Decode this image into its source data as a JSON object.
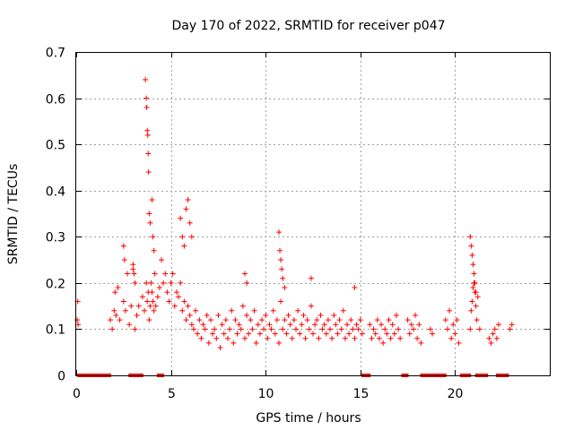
{
  "chart_data": {
    "type": "scatter",
    "title": "Day 170 of 2022, SRMTID for receiver p047",
    "xlabel": "GPS time / hours",
    "ylabel": "SRMTID / TECUs",
    "xlim": [
      0,
      25
    ],
    "ylim": [
      0,
      0.7
    ],
    "x_ticks": [
      0,
      5,
      10,
      15,
      20
    ],
    "x_tick_labels": [
      "0",
      "5",
      "10",
      "15",
      "20"
    ],
    "y_ticks": [
      0,
      0.1,
      0.2,
      0.3,
      0.4,
      0.5,
      0.6,
      0.7
    ],
    "y_tick_labels": [
      "0",
      "0.1",
      "0.2",
      "0.3",
      "0.4",
      "0.5",
      "0.6",
      "0.7"
    ],
    "grid": true,
    "marker": "+",
    "color": "#ff0000",
    "series": [
      {
        "name": "SRMTID",
        "x": [
          0.05,
          0.08,
          0.1,
          1.8,
          1.9,
          2.0,
          2.05,
          2.1,
          2.2,
          2.3,
          2.5,
          2.6,
          2.7,
          2.8,
          2.9,
          3.0,
          3.1,
          3.2,
          3.3,
          3.5,
          3.6,
          3.7,
          3.75,
          3.8,
          3.85,
          3.9,
          3.95,
          4.0,
          4.05,
          4.1,
          4.15,
          4.2,
          4.3,
          4.4,
          4.5,
          4.6,
          4.7,
          4.8,
          4.9,
          5.0,
          5.1,
          5.2,
          5.3,
          5.4,
          5.5,
          5.6,
          5.7,
          5.8,
          5.9,
          6.0,
          6.1,
          6.2,
          6.3,
          6.4,
          6.5,
          6.6,
          6.7,
          6.8,
          6.9,
          7.0,
          7.1,
          7.2,
          7.3,
          7.4,
          7.5,
          7.6,
          7.7,
          7.8,
          7.9,
          8.0,
          8.1,
          8.2,
          8.3,
          8.4,
          8.5,
          8.6,
          8.7,
          8.8,
          8.9,
          9.0,
          9.1,
          9.2,
          9.3,
          9.4,
          9.5,
          9.6,
          9.7,
          9.8,
          9.9,
          10.0,
          10.1,
          10.2,
          10.3,
          10.4,
          10.5,
          10.6,
          10.7,
          10.8,
          10.9,
          11.0,
          11.1,
          11.2,
          11.3,
          11.4,
          11.5,
          11.6,
          11.7,
          11.8,
          11.9,
          12.0,
          12.1,
          12.2,
          12.3,
          12.4,
          12.5,
          12.6,
          12.7,
          12.8,
          12.9,
          13.0,
          13.1,
          13.2,
          13.3,
          13.4,
          13.5,
          13.6,
          13.7,
          13.8,
          13.9,
          14.0,
          14.1,
          14.2,
          14.3,
          14.4,
          14.5,
          14.6,
          14.7,
          14.8,
          14.9,
          15.0,
          15.1,
          15.5,
          15.6,
          15.7,
          15.8,
          15.9,
          16.0,
          16.1,
          16.2,
          16.3,
          16.4,
          16.5,
          16.6,
          16.7,
          16.8,
          16.9,
          17.0,
          17.1,
          17.5,
          17.6,
          17.7,
          17.8,
          17.9,
          18.0,
          18.1,
          18.2,
          18.7,
          18.8,
          19.5,
          19.6,
          19.7,
          19.8,
          19.9,
          20.0,
          20.1,
          20.2,
          20.8,
          20.85,
          20.9,
          20.95,
          21.0,
          21.05,
          21.1,
          21.15,
          21.2,
          21.3,
          21.8,
          21.9,
          22.0,
          22.1,
          22.2,
          22.3,
          22.9,
          23.0,
          3.65,
          3.7,
          3.72,
          3.75,
          3.78,
          3.8,
          3.82,
          3.85,
          3.9,
          4.0,
          4.05,
          4.1,
          5.5,
          5.6,
          5.7,
          5.8,
          5.9,
          6.0,
          6.1,
          10.7,
          10.75,
          10.8,
          10.85,
          10.9,
          11.0,
          20.8,
          20.85,
          20.9,
          20.95,
          21.0,
          21.05,
          21.1,
          2.5,
          2.55,
          3.0,
          3.05,
          3.1,
          8.9,
          9.0,
          12.4,
          14.7
        ],
        "y": [
          0.12,
          0.16,
          0.11,
          0.12,
          0.1,
          0.14,
          0.18,
          0.13,
          0.19,
          0.12,
          0.16,
          0.14,
          0.22,
          0.11,
          0.15,
          0.23,
          0.1,
          0.13,
          0.15,
          0.17,
          0.14,
          0.2,
          0.16,
          0.18,
          0.12,
          0.15,
          0.2,
          0.18,
          0.16,
          0.14,
          0.22,
          0.15,
          0.17,
          0.19,
          0.25,
          0.2,
          0.22,
          0.18,
          0.16,
          0.2,
          0.22,
          0.15,
          0.18,
          0.17,
          0.2,
          0.14,
          0.16,
          0.12,
          0.15,
          0.13,
          0.11,
          0.1,
          0.14,
          0.09,
          0.12,
          0.08,
          0.11,
          0.1,
          0.13,
          0.07,
          0.12,
          0.09,
          0.1,
          0.08,
          0.13,
          0.06,
          0.11,
          0.09,
          0.12,
          0.08,
          0.1,
          0.14,
          0.07,
          0.12,
          0.09,
          0.11,
          0.1,
          0.15,
          0.08,
          0.13,
          0.09,
          0.12,
          0.1,
          0.14,
          0.07,
          0.11,
          0.09,
          0.12,
          0.1,
          0.13,
          0.08,
          0.11,
          0.1,
          0.14,
          0.09,
          0.12,
          0.07,
          0.16,
          0.1,
          0.12,
          0.09,
          0.13,
          0.11,
          0.08,
          0.12,
          0.1,
          0.14,
          0.09,
          0.11,
          0.13,
          0.08,
          0.12,
          0.1,
          0.15,
          0.09,
          0.11,
          0.12,
          0.08,
          0.13,
          0.1,
          0.11,
          0.09,
          0.12,
          0.1,
          0.08,
          0.13,
          0.11,
          0.09,
          0.12,
          0.1,
          0.14,
          0.08,
          0.11,
          0.09,
          0.12,
          0.1,
          0.08,
          0.11,
          0.1,
          0.12,
          0.09,
          0.11,
          0.08,
          0.1,
          0.09,
          0.12,
          0.08,
          0.11,
          0.07,
          0.1,
          0.09,
          0.12,
          0.08,
          0.11,
          0.09,
          0.13,
          0.1,
          0.08,
          0.12,
          0.09,
          0.11,
          0.1,
          0.13,
          0.08,
          0.11,
          0.07,
          0.1,
          0.09,
          0.12,
          0.1,
          0.14,
          0.08,
          0.11,
          0.09,
          0.12,
          0.07,
          0.1,
          0.14,
          0.16,
          0.19,
          0.2,
          0.18,
          0.15,
          0.12,
          0.17,
          0.1,
          0.08,
          0.07,
          0.09,
          0.1,
          0.08,
          0.11,
          0.1,
          0.11,
          0.64,
          0.6,
          0.58,
          0.53,
          0.52,
          0.48,
          0.44,
          0.35,
          0.33,
          0.38,
          0.3,
          0.27,
          0.34,
          0.3,
          0.28,
          0.36,
          0.38,
          0.33,
          0.3,
          0.31,
          0.27,
          0.25,
          0.23,
          0.21,
          0.19,
          0.3,
          0.28,
          0.26,
          0.24,
          0.22,
          0.2,
          0.18,
          0.28,
          0.25,
          0.24,
          0.22,
          0.2,
          0.22,
          0.2,
          0.21,
          0.19
        ]
      }
    ],
    "zero_points_x": [
      0.2,
      0.3,
      0.4,
      0.5,
      0.6,
      0.7,
      0.9,
      1.0,
      1.1,
      1.3,
      1.4,
      1.6,
      1.7,
      2.9,
      3.0,
      3.1,
      3.2,
      3.3,
      3.4,
      4.4,
      4.5,
      15.2,
      15.3,
      15.4,
      17.3,
      17.4,
      18.3,
      18.4,
      18.5,
      18.6,
      18.8,
      18.9,
      19.0,
      19.1,
      19.3,
      19.4,
      20.4,
      20.5,
      20.6,
      20.7,
      21.2,
      21.4,
      21.5,
      21.6,
      22.3,
      22.5,
      22.7
    ]
  }
}
